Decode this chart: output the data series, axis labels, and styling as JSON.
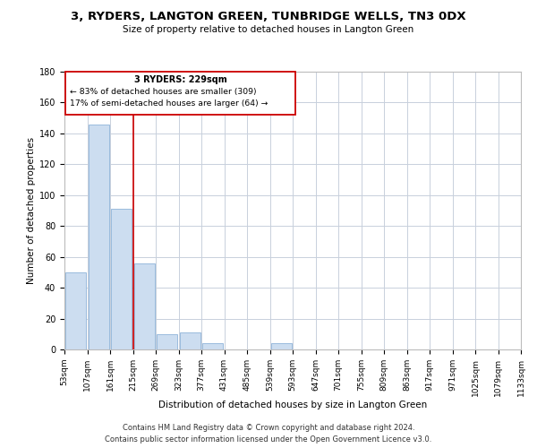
{
  "title": "3, RYDERS, LANGTON GREEN, TUNBRIDGE WELLS, TN3 0DX",
  "subtitle": "Size of property relative to detached houses in Langton Green",
  "xlabel": "Distribution of detached houses by size in Langton Green",
  "ylabel": "Number of detached properties",
  "bar_values": [
    50,
    146,
    91,
    56,
    10,
    11,
    4,
    0,
    0,
    4,
    0,
    0,
    0,
    0,
    0,
    0,
    0,
    0,
    0,
    0
  ],
  "bin_labels": [
    "53sqm",
    "107sqm",
    "161sqm",
    "215sqm",
    "269sqm",
    "323sqm",
    "377sqm",
    "431sqm",
    "485sqm",
    "539sqm",
    "593sqm",
    "647sqm",
    "701sqm",
    "755sqm",
    "809sqm",
    "863sqm",
    "917sqm",
    "971sqm",
    "1025sqm",
    "1079sqm",
    "1133sqm"
  ],
  "bar_color": "#ccddf0",
  "bar_edge_color": "#99bbdd",
  "highlight_label": "3 RYDERS: 229sqm",
  "annotation_line1": "← 83% of detached houses are smaller (309)",
  "annotation_line2": "17% of semi-detached houses are larger (64) →",
  "vline_color": "#cc0000",
  "vline_x_index": 3,
  "ylim": [
    0,
    180
  ],
  "yticks": [
    0,
    20,
    40,
    60,
    80,
    100,
    120,
    140,
    160,
    180
  ],
  "footer_line1": "Contains HM Land Registry data © Crown copyright and database right 2024.",
  "footer_line2": "Contains public sector information licensed under the Open Government Licence v3.0.",
  "background_color": "#ffffff",
  "grid_color": "#c8d0dc",
  "title_fontsize": 9.5,
  "subtitle_fontsize": 7.5,
  "axis_label_fontsize": 7.5,
  "tick_fontsize": 6.5,
  "annotation_fontsize": 7.0,
  "footer_fontsize": 6.0
}
